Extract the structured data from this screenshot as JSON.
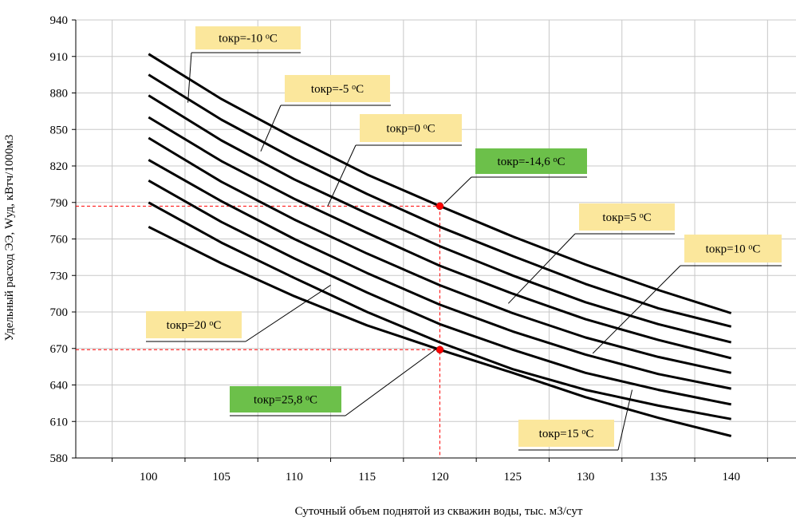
{
  "chart_data": {
    "type": "line",
    "title": "",
    "xlabel": "Суточный объем поднятой из скважин воды,  тыс. м3/сут",
    "ylabel": "Удельный расход ЭЭ, Wуд, кВтч/1000м3",
    "xlim": [
      95,
      145
    ],
    "ylim": [
      580,
      940
    ],
    "x_ticks": [
      100,
      105,
      110,
      115,
      120,
      125,
      130,
      135,
      140
    ],
    "y_ticks": [
      580,
      610,
      640,
      670,
      700,
      730,
      760,
      790,
      820,
      850,
      880,
      910,
      940
    ],
    "grid": true,
    "x": [
      100,
      105,
      110,
      115,
      120,
      125,
      130,
      135,
      140
    ],
    "series": [
      {
        "values": [
          912,
          875,
          843,
          813,
          787,
          762,
          739,
          718,
          699
        ]
      },
      {
        "values": [
          895,
          858,
          826,
          797,
          770,
          746,
          723,
          703,
          688
        ]
      },
      {
        "values": [
          878,
          841,
          809,
          781,
          754,
          730,
          708,
          690,
          675
        ]
      },
      {
        "values": [
          860,
          824,
          793,
          765,
          738,
          715,
          694,
          677,
          662
        ]
      },
      {
        "values": [
          843,
          807,
          776,
          748,
          722,
          699,
          679,
          663,
          650
        ]
      },
      {
        "values": [
          825,
          791,
          760,
          732,
          706,
          684,
          665,
          649,
          637
        ]
      },
      {
        "values": [
          808,
          774,
          744,
          716,
          690,
          669,
          650,
          636,
          624
        ]
      },
      {
        "values": [
          790,
          757,
          728,
          700,
          675,
          653,
          636,
          623,
          612
        ]
      },
      {
        "values": [
          770,
          740,
          713,
          689,
          669,
          650,
          630,
          613,
          598
        ]
      }
    ],
    "markers": [
      {
        "x": 120,
        "y": 787,
        "color": "#ff0000"
      },
      {
        "x": 120,
        "y": 669,
        "color": "#ff0000"
      }
    ],
    "annotations": [
      {
        "prefix": "tокр=-10 ",
        "sup": "o",
        "unit": "C",
        "highlight": "#fbe79c",
        "target": [
          102.7,
          872
        ]
      },
      {
        "prefix": "tокр=-5 ",
        "sup": "o",
        "unit": "C",
        "highlight": "#fbe79c",
        "target": [
          107.7,
          832
        ]
      },
      {
        "prefix": "tокр=0 ",
        "sup": "o",
        "unit": "C",
        "highlight": "#fbe79c",
        "target": [
          112.3,
          787
        ]
      },
      {
        "prefix": "tокр=-14,6 ",
        "sup": "o",
        "unit": "C",
        "highlight": "#6cc04a",
        "target": [
          120.3,
          789
        ]
      },
      {
        "prefix": "tокр=5 ",
        "sup": "o",
        "unit": "C",
        "highlight": "#fbe79c",
        "target": [
          124.7,
          707
        ]
      },
      {
        "prefix": "tокр=10 ",
        "sup": "o",
        "unit": "C",
        "highlight": "#fbe79c",
        "target": [
          130.5,
          666
        ]
      },
      {
        "prefix": "tокр=20 ",
        "sup": "o",
        "unit": "C",
        "highlight": "#fbe79c",
        "target": [
          112.5,
          722
        ]
      },
      {
        "prefix": "tокр=25,8 ",
        "sup": "o",
        "unit": "C",
        "highlight": "#6cc04a",
        "target": [
          119.8,
          670
        ]
      },
      {
        "prefix": "tокр=15 ",
        "sup": "o",
        "unit": "C",
        "highlight": "#fbe79c",
        "target": [
          133.2,
          636
        ]
      }
    ],
    "colors": {
      "line": "#000000",
      "guide": "#ff0000",
      "grid": "#c8c8c8"
    }
  }
}
